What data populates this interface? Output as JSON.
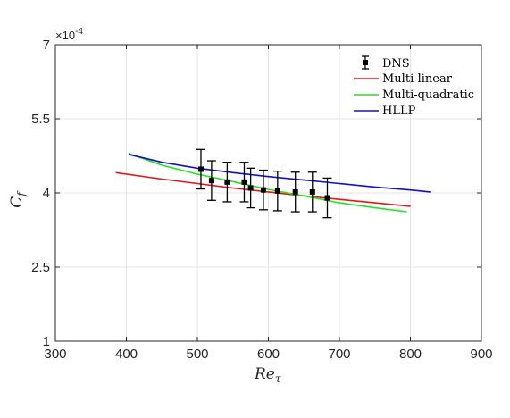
{
  "chart_data": {
    "type": "line",
    "xlabel": "Re",
    "xlabel_sub": "τ",
    "ylabel": "C",
    "ylabel_sub": "f",
    "y_exponent": "×10-4",
    "xlim": [
      300,
      900
    ],
    "ylim": [
      1,
      7
    ],
    "xticks": [
      300,
      400,
      500,
      600,
      700,
      800,
      900
    ],
    "yticks": [
      1,
      2.5,
      4,
      5.5,
      7
    ],
    "xtick_labels": [
      "300",
      "400",
      "500",
      "600",
      "700",
      "800",
      "900"
    ],
    "ytick_labels": [
      "1",
      "2.5",
      "4",
      "5.5",
      "7"
    ],
    "grid": true,
    "legend_position": "top-right",
    "dns": {
      "name": "DNS",
      "color": "#000000",
      "x": [
        505,
        520,
        542,
        566,
        575,
        593,
        613,
        638,
        662,
        683
      ],
      "y": [
        4.48,
        4.25,
        4.22,
        4.22,
        4.1,
        4.06,
        4.04,
        4.02,
        4.02,
        3.9
      ],
      "err": [
        0.4,
        0.4,
        0.4,
        0.4,
        0.4,
        0.4,
        0.4,
        0.4,
        0.4,
        0.4
      ]
    },
    "series": [
      {
        "name": "Multi-linear",
        "color": "#e8141b",
        "x": [
          385,
          450,
          500,
          550,
          600,
          650,
          700,
          750,
          800
        ],
        "y": [
          4.41,
          4.28,
          4.19,
          4.1,
          4.02,
          3.94,
          3.87,
          3.8,
          3.73
        ]
      },
      {
        "name": "Multi-quadratic",
        "color": "#1fe61f",
        "x": [
          403,
          450,
          500,
          550,
          600,
          650,
          700,
          750,
          795
        ],
        "y": [
          4.8,
          4.56,
          4.38,
          4.23,
          4.07,
          3.94,
          3.8,
          3.7,
          3.62
        ]
      },
      {
        "name": "HLLP",
        "color": "#1010cc",
        "x": [
          403,
          450,
          500,
          550,
          600,
          650,
          700,
          750,
          800,
          828
        ],
        "y": [
          4.78,
          4.62,
          4.5,
          4.41,
          4.33,
          4.26,
          4.19,
          4.12,
          4.06,
          4.02
        ]
      }
    ]
  }
}
